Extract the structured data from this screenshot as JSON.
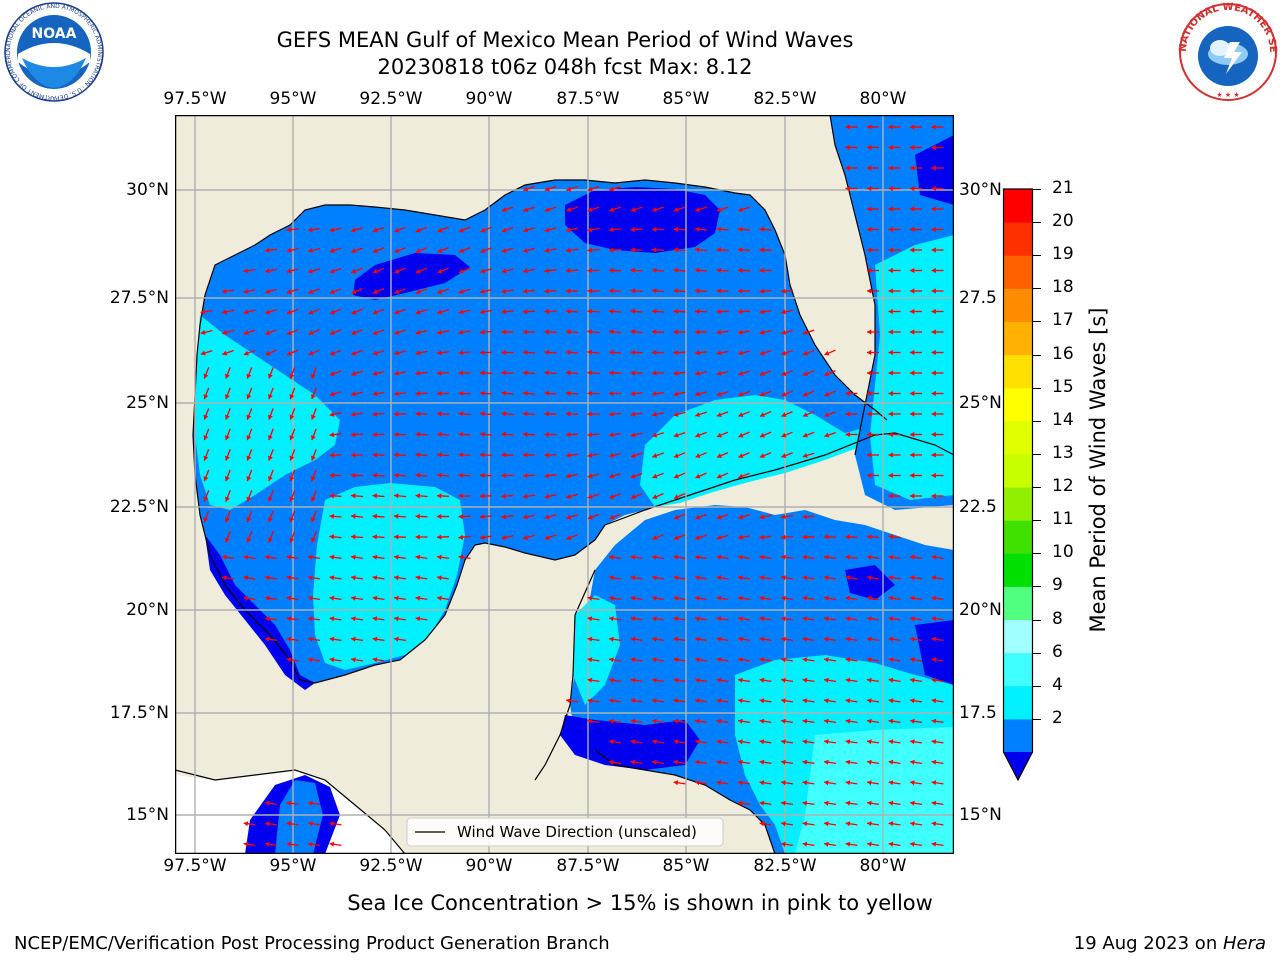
{
  "title": {
    "line1": "GEFS MEAN Gulf of Mexico Mean Period of Wind Waves",
    "line2": "20230818 t06z 048h fcst   Max: 8.12"
  },
  "logos": {
    "noaa": {
      "center_text": "NOAA",
      "ring_text": "NATIONAL OCEANIC AND ATMOSPHERIC ADMINISTRATION · U.S. DEPARTMENT OF COMMERCE"
    },
    "nws": {
      "ring_text": "NATIONAL WEATHER SERVICE"
    }
  },
  "map": {
    "lon_ticks": [
      "97.5°W",
      "95°W",
      "92.5°W",
      "90°W",
      "87.5°W",
      "85°W",
      "82.5°W",
      "80°W"
    ],
    "lat_ticks_left": [
      "30°N",
      "27.5°N",
      "25°N",
      "22.5°N",
      "20°N",
      "17.5°N",
      "15°N"
    ],
    "lat_ticks_right": [
      "30°N",
      "27.5",
      "25°N",
      "22.5",
      "20°N",
      "17.5",
      "15°N"
    ],
    "legend_label": "Wind Wave Direction (unscaled)",
    "colors": {
      "land": "#efecdc",
      "band_2_4": "#0080ff",
      "band_4_6": "#00f0ff",
      "band_under_2": "#0000f0",
      "arrow": "#ff0000",
      "grid": "#b0b0b0"
    }
  },
  "colorbar": {
    "label": "Mean Period of Wind Waves [s]",
    "tick_labels": [
      "21",
      "20",
      "19",
      "18",
      "17",
      "16",
      "15",
      "14",
      "13",
      "12",
      "11",
      "10",
      "9",
      "8",
      "6",
      "4",
      "2"
    ],
    "colors": [
      "#0080ff",
      "#00f0ff",
      "#40ffff",
      "#a0ffff",
      "#50ff80",
      "#00e000",
      "#40e000",
      "#90f000",
      "#c8ff00",
      "#e0ff00",
      "#ffff00",
      "#ffe000",
      "#ffb000",
      "#ff8c00",
      "#ff6000",
      "#ff3000",
      "#ff0000"
    ]
  },
  "subtitle": "Sea Ice Concentration > 15% is shown in pink to yellow",
  "footer": {
    "left": "NCEP/EMC/Verification Post Processing Product Generation Branch",
    "right_prefix": "19 Aug 2023 on ",
    "right_machine": "Hera"
  }
}
